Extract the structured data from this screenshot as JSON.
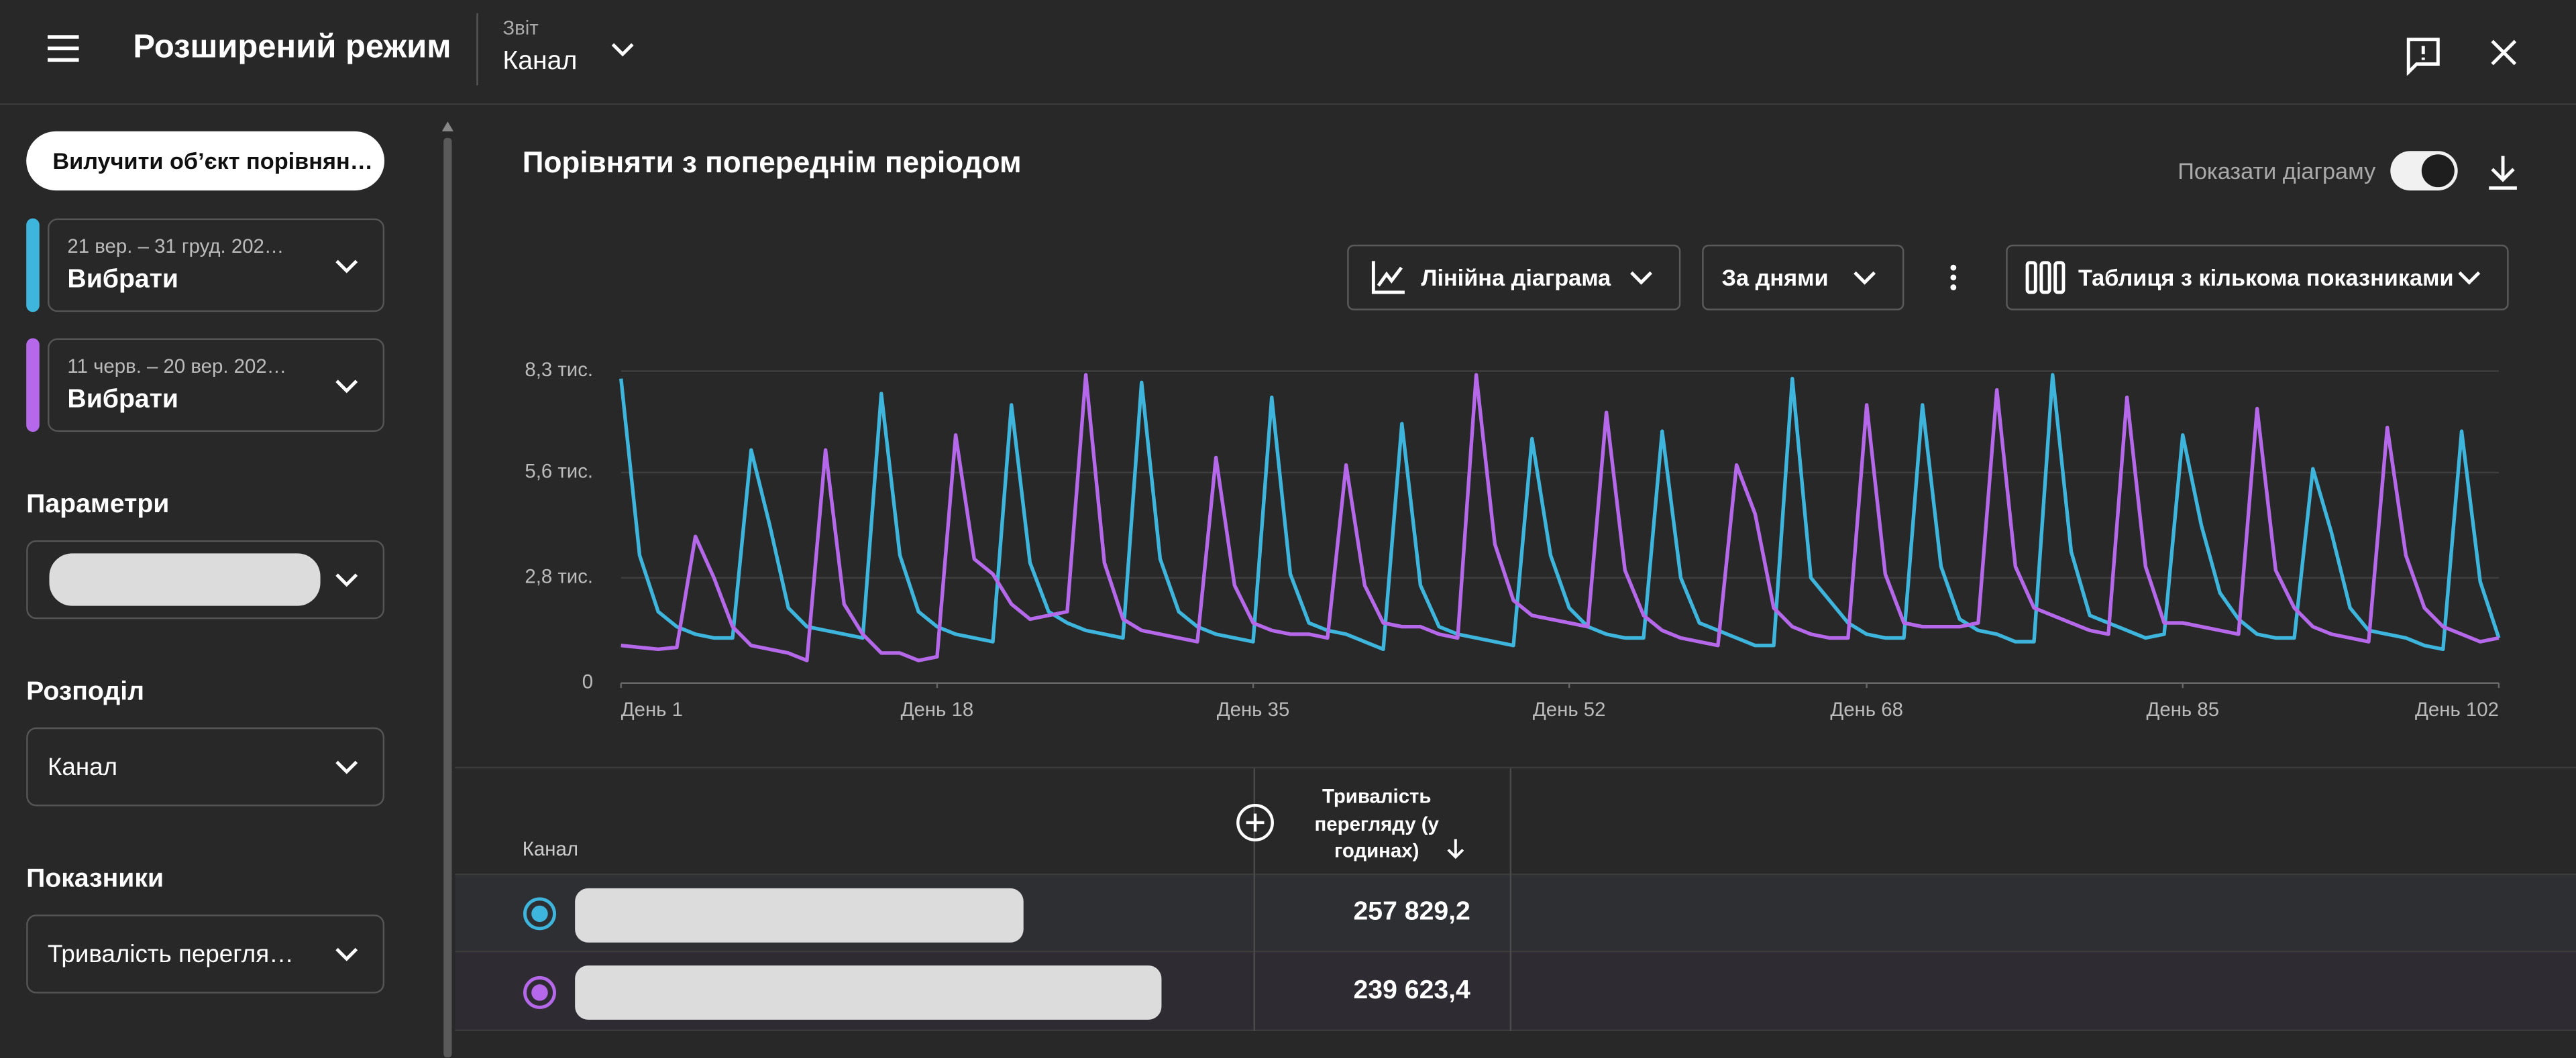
{
  "header": {
    "title": "Розширений режим",
    "report_label": "Звіт",
    "report_value": "Канал"
  },
  "sidebar": {
    "remove_button": "Вилучити об’єкт порівнян…",
    "periods": [
      {
        "select": "Вибрати"
      },
      {
        "select": "Вибрати"
      }
    ],
    "parameters_title": "Параметри",
    "distribution_title": "Розподіл",
    "distribution_value": "Канал",
    "metrics_title": "Показники",
    "metrics_value": "Тривалість перегля…"
  },
  "main": {
    "title": "Порівняти з попереднім періодом",
    "show_chart": "Показати діаграму",
    "chart_type": "Лінійна діаграма",
    "grouping": "За днями",
    "table_type": "Таблиця з кількома показниками"
  },
  "chart_data": {
    "type": "line",
    "x": [
      1,
      2,
      3,
      4,
      5,
      6,
      7,
      8,
      9,
      10,
      11,
      12,
      13,
      14,
      15,
      16,
      17,
      18,
      19,
      20,
      21,
      22,
      23,
      24,
      25,
      26,
      27,
      28,
      29,
      30,
      31,
      32,
      33,
      34,
      35,
      36,
      37,
      38,
      39,
      40,
      41,
      42,
      43,
      44,
      45,
      46,
      47,
      48,
      49,
      50,
      51,
      52,
      53,
      54,
      55,
      56,
      57,
      58,
      59,
      60,
      61,
      62,
      63,
      64,
      65,
      66,
      67,
      68,
      69,
      70,
      71,
      72,
      73,
      74,
      75,
      76,
      77,
      78,
      79,
      80,
      81,
      82,
      83,
      84,
      85,
      86,
      87,
      88,
      89,
      90,
      91,
      92,
      93,
      94,
      95,
      96,
      97,
      98,
      99,
      100,
      101,
      102
    ],
    "xlim": [
      1,
      102
    ],
    "xticks": [
      {
        "value": 1,
        "label": "День 1"
      },
      {
        "value": 18,
        "label": "День 18"
      },
      {
        "value": 35,
        "label": "День 35"
      },
      {
        "value": 52,
        "label": "День 52"
      },
      {
        "value": 68,
        "label": "День 68"
      },
      {
        "value": 85,
        "label": "День 85"
      },
      {
        "value": 102,
        "label": "День 102"
      }
    ],
    "ylim": [
      0,
      8300
    ],
    "yticks": [
      0,
      {
        "value": 2800,
        "label": "2,8 тис."
      },
      {
        "value": 5600,
        "label": "5,6 тис."
      },
      {
        "value": 8300,
        "label": "8,3 тис."
      }
    ],
    "grid": true,
    "series": [
      {
        "name": "21 вер. – 31 груд. 202…",
        "color": "#3db5dc",
        "values": [
          8100,
          3400,
          1900,
          1500,
          1300,
          1200,
          1200,
          6200,
          4200,
          2000,
          1500,
          1400,
          1300,
          1200,
          7700,
          3400,
          1900,
          1500,
          1300,
          1200,
          1100,
          7400,
          3200,
          1900,
          1600,
          1400,
          1300,
          1200,
          8000,
          3300,
          1900,
          1500,
          1300,
          1200,
          1100,
          7600,
          2900,
          1600,
          1400,
          1300,
          1100,
          900,
          6900,
          2600,
          1500,
          1300,
          1200,
          1100,
          1000,
          6500,
          3400,
          2000,
          1500,
          1300,
          1200,
          1200,
          6700,
          2800,
          1600,
          1400,
          1200,
          1000,
          1000,
          8100,
          2800,
          2200,
          1600,
          1300,
          1200,
          1200,
          7400,
          3100,
          1700,
          1400,
          1300,
          1100,
          1100,
          8200,
          3500,
          1800,
          1600,
          1400,
          1200,
          1300,
          6600,
          4200,
          2400,
          1700,
          1300,
          1200,
          1200,
          5700,
          4000,
          2000,
          1400,
          1300,
          1200,
          1000,
          900,
          6700,
          2700,
          1200
        ]
      },
      {
        "name": "11 черв. – 20 вер. 202…",
        "color": "#b569ea",
        "values": [
          1000,
          950,
          900,
          950,
          3900,
          2800,
          1500,
          1000,
          900,
          800,
          600,
          6200,
          2100,
          1300,
          800,
          800,
          600,
          700,
          6600,
          3300,
          2900,
          2100,
          1700,
          1800,
          1900,
          8200,
          3200,
          1700,
          1400,
          1300,
          1200,
          1100,
          6000,
          2600,
          1600,
          1400,
          1300,
          1300,
          1200,
          5800,
          2600,
          1600,
          1500,
          1500,
          1300,
          1200,
          8200,
          3700,
          2200,
          1800,
          1700,
          1600,
          1500,
          7200,
          3000,
          1800,
          1400,
          1200,
          1100,
          1000,
          5800,
          4500,
          2000,
          1500,
          1300,
          1200,
          1200,
          7400,
          2900,
          1600,
          1500,
          1500,
          1500,
          1600,
          7800,
          3100,
          2000,
          1800,
          1600,
          1400,
          1300,
          7600,
          3100,
          1600,
          1600,
          1500,
          1400,
          1300,
          7300,
          3000,
          2000,
          1500,
          1300,
          1200,
          1100,
          6800,
          3400,
          2000,
          1500,
          1300,
          1100,
          1200
        ]
      }
    ]
  },
  "table": {
    "columns": [
      "Канал",
      "Тривалість перегляду (у годинах)"
    ],
    "rows": [
      [
        "257 829,2"
      ],
      [
        "239 623,4"
      ]
    ]
  }
}
